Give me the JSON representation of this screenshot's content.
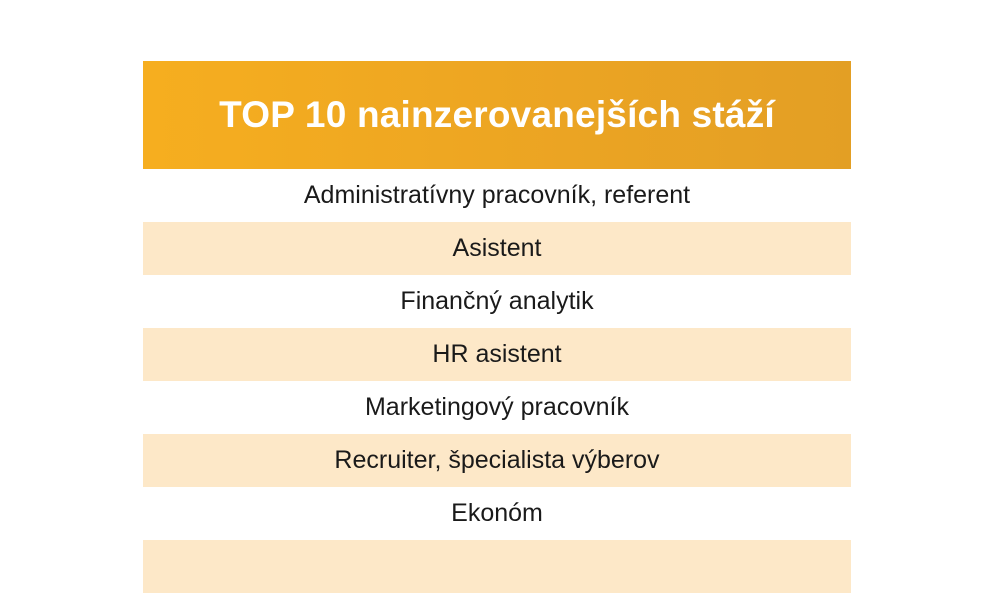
{
  "title": "TOP 10 nainzerovanejších stáží",
  "colors": {
    "header_bg": "#f2a920",
    "header_text": "#ffffff",
    "row_alt_bg": "#fde8c8",
    "row_bg": "#ffffff",
    "text": "#1a1a1a"
  },
  "rows": [
    {
      "label": "Administratívny pracovník, referent"
    },
    {
      "label": "Asistent"
    },
    {
      "label": "Finančný analytik"
    },
    {
      "label": "HR asistent"
    },
    {
      "label": "Marketingový pracovník"
    },
    {
      "label": "Recruiter, špecialista výberov"
    },
    {
      "label": "Ekonóm"
    },
    {
      "label": ""
    }
  ]
}
